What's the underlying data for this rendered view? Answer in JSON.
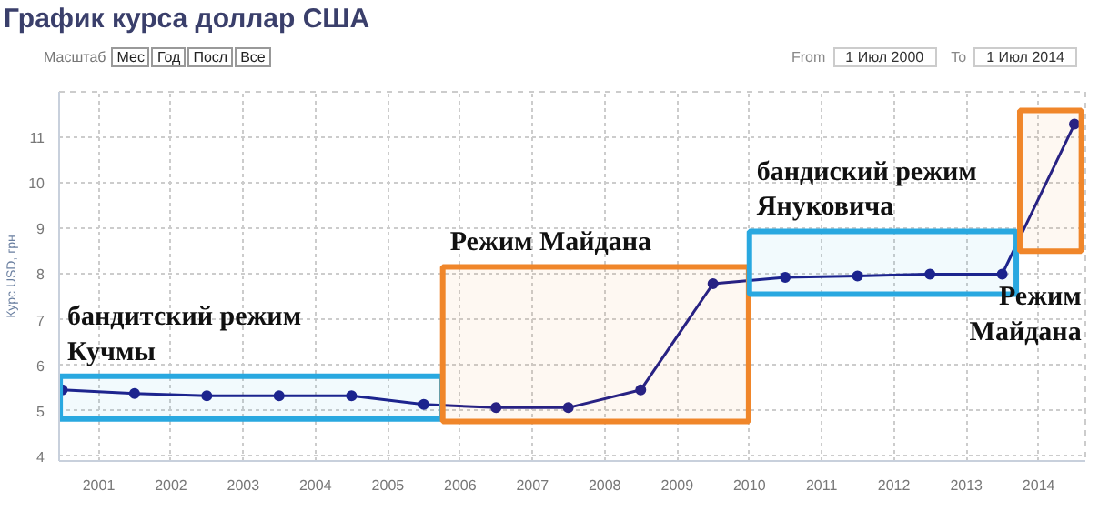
{
  "chart_data": {
    "type": "line",
    "title": "График курса доллар США",
    "ylabel": "Курс USD, грн",
    "x": [
      "2000-07-01",
      "2001-07-01",
      "2002-07-01",
      "2003-07-01",
      "2004-07-01",
      "2005-07-01",
      "2006-07-01",
      "2007-07-01",
      "2008-07-01",
      "2009-07-01",
      "2010-07-01",
      "2011-07-01",
      "2012-07-01",
      "2013-07-01",
      "2014-07-01"
    ],
    "series": [
      {
        "color": "#1c1c8a",
        "values": [
          5.46,
          5.38,
          5.33,
          5.33,
          5.33,
          5.14,
          5.07,
          5.07,
          5.46,
          7.79,
          7.93,
          7.96,
          8.0,
          8.0,
          11.29
        ]
      }
    ],
    "xlim": [
      "2000-06-15",
      "2014-08-25"
    ],
    "xticks": [
      {
        "value": "2001-01-01",
        "label": "2001"
      },
      {
        "value": "2002-01-01",
        "label": "2002"
      },
      {
        "value": "2003-01-01",
        "label": "2003"
      },
      {
        "value": "2004-01-01",
        "label": "2004"
      },
      {
        "value": "2005-01-01",
        "label": "2005"
      },
      {
        "value": "2006-01-01",
        "label": "2006"
      },
      {
        "value": "2007-01-01",
        "label": "2007"
      },
      {
        "value": "2008-01-01",
        "label": "2008"
      },
      {
        "value": "2009-01-01",
        "label": "2009"
      },
      {
        "value": "2010-01-01",
        "label": "2010"
      },
      {
        "value": "2011-01-01",
        "label": "2011"
      },
      {
        "value": "2012-01-01",
        "label": "2012"
      },
      {
        "value": "2013-01-01",
        "label": "2013"
      },
      {
        "value": "2014-01-01",
        "label": "2014"
      }
    ],
    "ylim": [
      3.9,
      12
    ],
    "yticks": [
      4,
      5,
      6,
      7,
      8,
      9,
      10,
      11
    ],
    "grid": true,
    "marker": "circle",
    "line_style": "solid",
    "bands": [
      {
        "axis": "x",
        "from": "2000-06-20",
        "to": "2005-10-01",
        "label": "бандитский режим Кучмы",
        "color": "#29a8e0"
      },
      {
        "axis": "x",
        "from": "2005-10-05",
        "to": "2009-12-28",
        "label": "Режим Майдана",
        "color": "#f0862a"
      },
      {
        "axis": "x",
        "from": "2010-01-01",
        "to": "2013-09-10",
        "label": "бандиский режим Януковича",
        "color": "#29a8e0"
      },
      {
        "axis": "x",
        "from": "2013-09-28",
        "to": "2014-08-05",
        "label": "Режим Майдана",
        "color": "#f0862a"
      }
    ],
    "annotations": [
      "Масштаб",
      "Мес",
      "Год",
      "Посл",
      "Все",
      "From",
      "1 Июл 2000",
      "To",
      "1 Июл 2014"
    ]
  }
}
